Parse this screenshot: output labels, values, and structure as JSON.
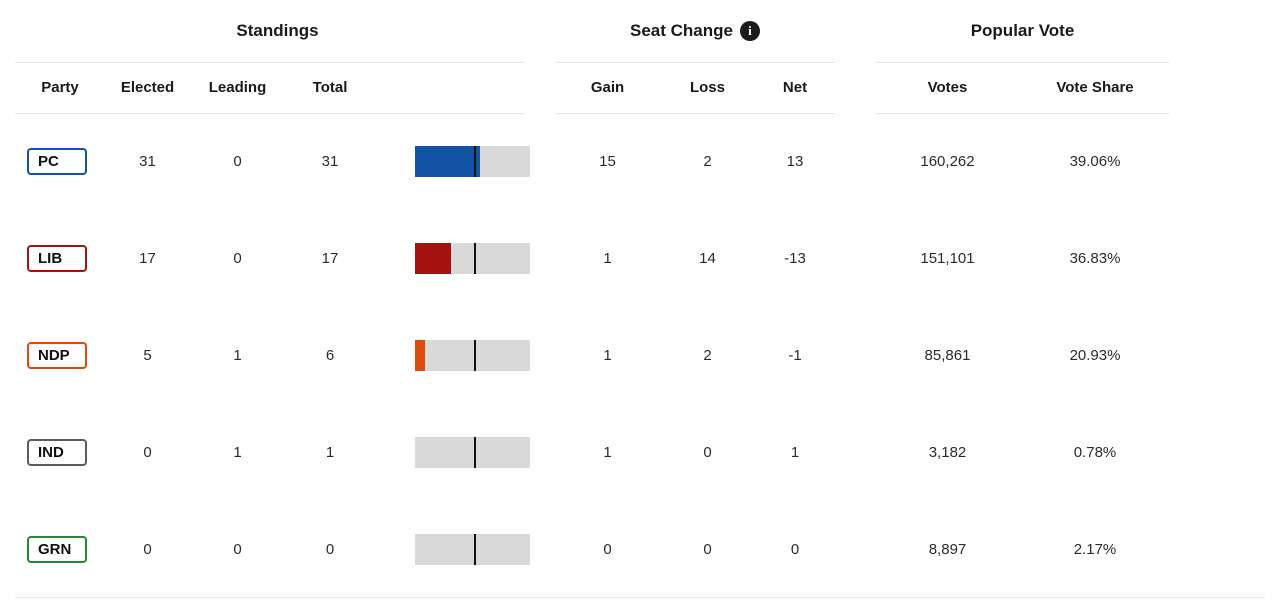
{
  "sections": {
    "standings": {
      "title": "Standings",
      "columns": {
        "party": "Party",
        "elected": "Elected",
        "leading": "Leading",
        "total": "Total"
      }
    },
    "seat_change": {
      "title": "Seat Change",
      "info_icon": "i",
      "columns": {
        "gain": "Gain",
        "loss": "Loss",
        "net": "Net"
      }
    },
    "popular_vote": {
      "title": "Popular Vote",
      "columns": {
        "votes": "Votes",
        "vote_share": "Vote Share"
      }
    }
  },
  "bar": {
    "track_color": "#d9d9d9",
    "marker_color": "#111111",
    "majority_marker_pct": 50.9
  },
  "rows": [
    {
      "party": "PC",
      "color": "#1353a4",
      "elected": "31",
      "leading": "0",
      "total": "31",
      "fill_pct": 56.4,
      "gain": "15",
      "loss": "2",
      "net": "13",
      "votes": "160,262",
      "vote_share": "39.06%"
    },
    {
      "party": "LIB",
      "color": "#a5120f",
      "elected": "17",
      "leading": "0",
      "total": "17",
      "fill_pct": 30.9,
      "gain": "1",
      "loss": "14",
      "net": "-13",
      "votes": "151,101",
      "vote_share": "36.83%"
    },
    {
      "party": "NDP",
      "color": "#df4a0d",
      "elected": "5",
      "leading": "1",
      "total": "6",
      "fill_pct": 9.1,
      "gain": "1",
      "loss": "2",
      "net": "-1",
      "votes": "85,861",
      "vote_share": "20.93%"
    },
    {
      "party": "IND",
      "color": "#5c5c5c",
      "elected": "0",
      "leading": "1",
      "total": "1",
      "fill_pct": 0,
      "gain": "1",
      "loss": "0",
      "net": "1",
      "votes": "3,182",
      "vote_share": "0.78%"
    },
    {
      "party": "GRN",
      "color": "#218a31",
      "elected": "0",
      "leading": "0",
      "total": "0",
      "fill_pct": 0,
      "gain": "0",
      "loss": "0",
      "net": "0",
      "votes": "8,897",
      "vote_share": "2.17%"
    }
  ]
}
